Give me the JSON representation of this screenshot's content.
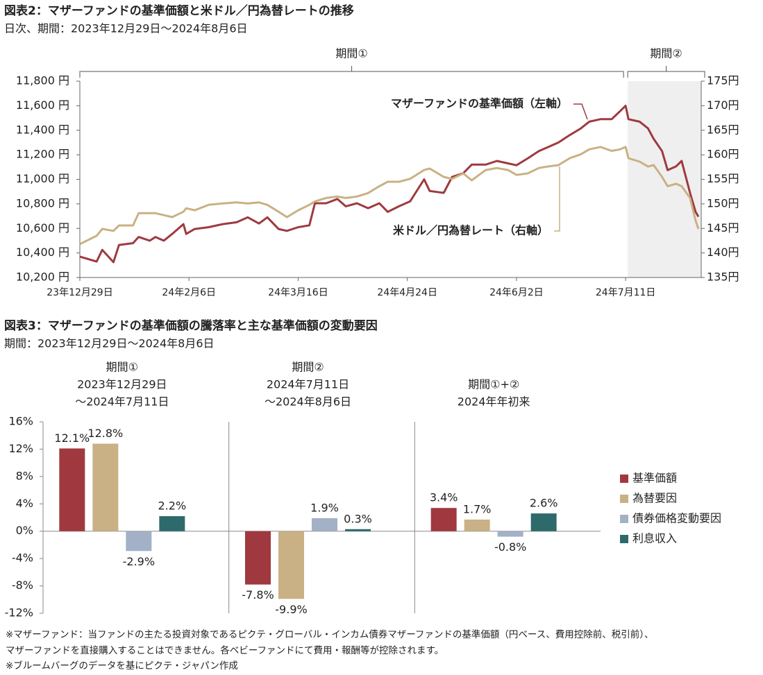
{
  "chart_data": [
    {
      "type": "line",
      "title": "図表2：マザーファンドの基準価額と米ドル／円為替レートの推移",
      "subtitle": "日次、期間：2023年12月29日～2024年8月6日",
      "x": [
        "2023-12-29",
        "2024-01-04",
        "2024-01-06",
        "2024-01-10",
        "2024-01-12",
        "2024-01-17",
        "2024-01-19",
        "2024-01-23",
        "2024-01-25",
        "2024-01-28",
        "2024-01-31",
        "2024-02-04",
        "2024-02-05",
        "2024-02-08",
        "2024-02-13",
        "2024-02-18",
        "2024-02-23",
        "2024-02-27",
        "2024-03-02",
        "2024-03-05",
        "2024-03-09",
        "2024-03-12",
        "2024-03-16",
        "2024-03-20",
        "2024-03-22",
        "2024-03-26",
        "2024-03-30",
        "2024-04-02",
        "2024-04-06",
        "2024-04-10",
        "2024-04-14",
        "2024-04-17",
        "2024-04-21",
        "2024-04-25",
        "2024-04-30",
        "2024-05-02",
        "2024-05-07",
        "2024-05-10",
        "2024-05-14",
        "2024-05-17",
        "2024-05-22",
        "2024-05-26",
        "2024-05-30",
        "2024-06-02",
        "2024-06-06",
        "2024-06-10",
        "2024-06-13",
        "2024-06-17",
        "2024-06-21",
        "2024-06-25",
        "2024-06-28",
        "2024-07-02",
        "2024-07-06",
        "2024-07-09",
        "2024-07-11",
        "2024-07-12",
        "2024-07-16",
        "2024-07-19",
        "2024-07-21",
        "2024-07-24",
        "2024-07-26",
        "2024-07-29",
        "2024-07-31",
        "2024-08-03",
        "2024-08-05",
        "2024-08-06"
      ],
      "series": [
        {
          "name": "マザーファンドの基準価額（左軸）",
          "color": "#9e3a40",
          "axis": "y",
          "values": [
            10370,
            10330,
            10425,
            10325,
            10465,
            10480,
            10530,
            10500,
            10530,
            10500,
            10555,
            10635,
            10555,
            10595,
            10610,
            10635,
            10650,
            10690,
            10640,
            10690,
            10595,
            10580,
            10610,
            10625,
            10805,
            10805,
            10840,
            10780,
            10805,
            10765,
            10805,
            10735,
            10780,
            10820,
            11000,
            10905,
            10890,
            11020,
            11050,
            11120,
            11120,
            11150,
            11130,
            11115,
            11170,
            11230,
            11260,
            11300,
            11360,
            11415,
            11470,
            11490,
            11490,
            11555,
            11600,
            11490,
            11470,
            11415,
            11330,
            11230,
            11075,
            11105,
            11150,
            10890,
            10735,
            10695
          ]
        },
        {
          "name": "米ドル／円為替レート（右軸）",
          "color": "#c9b183",
          "axis": "y2",
          "values": [
            141.8,
            143.5,
            144.9,
            144.5,
            145.6,
            145.6,
            148.1,
            148.1,
            148.1,
            147.7,
            147.3,
            148.4,
            149.1,
            148.7,
            149.8,
            150.1,
            150.3,
            150.1,
            150.3,
            149.8,
            148.4,
            147.3,
            148.7,
            149.8,
            150.5,
            151.2,
            151.5,
            151.2,
            151.5,
            152.2,
            153.6,
            154.5,
            154.5,
            155.1,
            156.9,
            157.2,
            155.5,
            155.1,
            156.2,
            154.8,
            156.9,
            157.3,
            156.9,
            155.9,
            156.2,
            157.3,
            157.6,
            157.9,
            159.3,
            160.1,
            161.1,
            161.6,
            160.8,
            161.1,
            161.6,
            159.3,
            158.6,
            157.6,
            157.9,
            155.5,
            153.6,
            154.1,
            153.6,
            151.2,
            146.6,
            144.9
          ]
        }
      ],
      "xlim": [
        "2023-12-29",
        "2024-08-07"
      ],
      "xticks": [
        {
          "value": "2023-12-29",
          "label": "23年12月29日"
        },
        {
          "value": "2024-02-06",
          "label": "24年2月6日"
        },
        {
          "value": "2024-03-16",
          "label": "24年3月16日"
        },
        {
          "value": "2024-04-24",
          "label": "24年4月24日"
        },
        {
          "value": "2024-06-02",
          "label": "24年6月2日"
        },
        {
          "value": "2024-07-11",
          "label": "24年7月11日"
        }
      ],
      "ylim": [
        10200,
        11800
      ],
      "yticks": [
        {
          "value": 10200,
          "label": "10,200 円"
        },
        {
          "value": 10400,
          "label": "10,400 円"
        },
        {
          "value": 10600,
          "label": "10,600 円"
        },
        {
          "value": 10800,
          "label": "10,800 円"
        },
        {
          "value": 11000,
          "label": "11,000 円"
        },
        {
          "value": 11200,
          "label": "11,200 円"
        },
        {
          "value": 11400,
          "label": "11,400 円"
        },
        {
          "value": 11600,
          "label": "11,600 円"
        },
        {
          "value": 11800,
          "label": "11,800 円"
        }
      ],
      "y2lim": [
        135,
        175
      ],
      "y2ticks": [
        {
          "value": 135,
          "label": "135円"
        },
        {
          "value": 140,
          "label": "140円"
        },
        {
          "value": 145,
          "label": "145円"
        },
        {
          "value": 150,
          "label": "150円"
        },
        {
          "value": 155,
          "label": "155円"
        },
        {
          "value": 160,
          "label": "160円"
        },
        {
          "value": 165,
          "label": "165円"
        },
        {
          "value": 170,
          "label": "170円"
        },
        {
          "value": 175,
          "label": "175円"
        }
      ],
      "periods": [
        {
          "label": "期間①",
          "start": "2023-12-29",
          "end": "2024-07-11",
          "shaded": false
        },
        {
          "label": "期間②",
          "start": "2024-07-11",
          "end": "2024-08-07",
          "shaded": true
        }
      ]
    },
    {
      "type": "bar",
      "title": "図表3：マザーファンドの基準価額の騰落率と主な基準価額の変動要因",
      "subtitle": "期間：2023年12月29日～2024年8月6日",
      "categories": [
        [
          "期間①",
          "2023年12月29日",
          "～2024年7月11日"
        ],
        [
          "期間②",
          "2024年7月11日",
          "～2024年8月6日"
        ],
        [
          "期間①+②",
          "2024年年初来"
        ]
      ],
      "series": [
        {
          "name": "基準価額",
          "color": "#a0393f",
          "values": [
            12.1,
            -7.8,
            3.4
          ],
          "value_labels": [
            "12.1%",
            "-7.8%",
            "3.4%"
          ]
        },
        {
          "name": "為替要因",
          "color": "#c9b185",
          "values": [
            12.8,
            -9.9,
            1.7
          ],
          "value_labels": [
            "12.8%",
            "-9.9%",
            "1.7%"
          ]
        },
        {
          "name": "債券価格変動要因",
          "color": "#a3b1c6",
          "values": [
            -2.9,
            1.9,
            -0.8
          ],
          "value_labels": [
            "-2.9%",
            "1.9%",
            "-0.8%"
          ]
        },
        {
          "name": "利息収入",
          "color": "#2e6a6c",
          "values": [
            2.2,
            0.3,
            2.6
          ],
          "value_labels": [
            "2.2%",
            "0.3%",
            "2.6%"
          ]
        }
      ],
      "ylim": [
        -12,
        16
      ],
      "yticks": [
        {
          "value": 16,
          "label": "16%"
        },
        {
          "value": 12,
          "label": "12%"
        },
        {
          "value": 8,
          "label": "8%"
        },
        {
          "value": 4,
          "label": "4%"
        },
        {
          "value": 0,
          "label": "0%"
        },
        {
          "value": -4,
          "label": "-4%"
        },
        {
          "value": -8,
          "label": "-8%"
        },
        {
          "value": -12,
          "label": "-12%"
        }
      ],
      "legend": "right"
    }
  ],
  "footnotes": [
    "※マザーファンド：当ファンドの主たる投資対象であるピクテ・グローバル・インカム債券マザーファンドの基準価額（円ベース、費用控除前、税引前）、",
    "マザーファンドを直接購入することはできません。各ベビーファンドにて費用・報酬等が控除されます。",
    "※ブルームバーグのデータを基にピクテ・ジャパン作成"
  ]
}
